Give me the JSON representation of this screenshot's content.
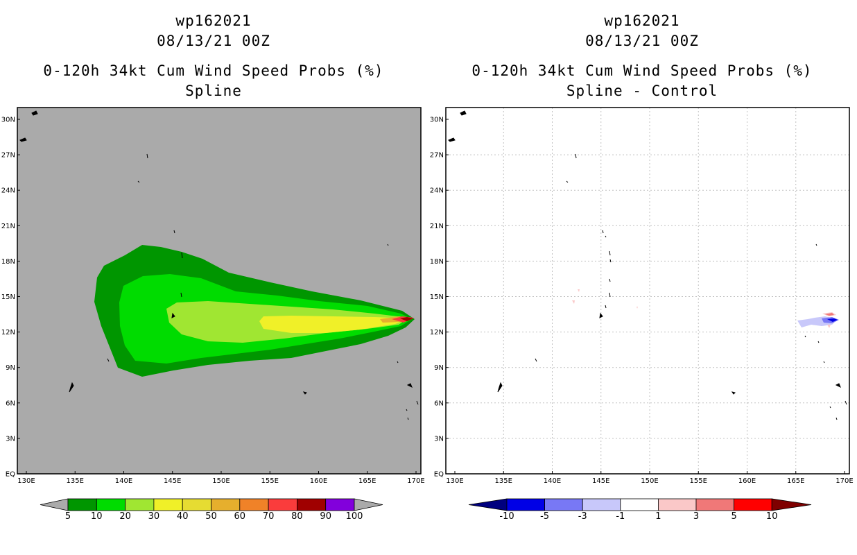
{
  "left_panel": {
    "title_line1": "wp162021",
    "title_line2": "08/13/21 00Z",
    "title_line3": "0-120h 34kt Cum Wind Speed Probs (%)",
    "title_line4": "Spline"
  },
  "right_panel": {
    "title_line1": "wp162021",
    "title_line2": "08/13/21 00Z",
    "title_line3": "0-120h 34kt Cum Wind Speed Probs (%)",
    "title_line4": "Spline - Control"
  },
  "axes": {
    "lat_labels": [
      "30N",
      "27N",
      "24N",
      "21N",
      "18N",
      "15N",
      "12N",
      "9N",
      "6N",
      "3N",
      "EQ"
    ],
    "lon_labels": [
      "130E",
      "135E",
      "140E",
      "145E",
      "150E",
      "155E",
      "160E",
      "165E",
      "170E"
    ]
  },
  "left_colorbar": {
    "labels": [
      "5",
      "10",
      "20",
      "30",
      "40",
      "50",
      "60",
      "70",
      "80",
      "90",
      "100"
    ],
    "colors": [
      "#009600",
      "#00dc00",
      "#a0e632",
      "#f0f028",
      "#e6dc32",
      "#e6af2d",
      "#f08228",
      "#fa3c3c",
      "#a00000",
      "#8200dc"
    ]
  },
  "right_colorbar": {
    "labels": [
      "-10",
      "-5",
      "-3",
      "-1",
      "1",
      "3",
      "5",
      "10"
    ],
    "colors": [
      "#0000e6",
      "#7878f5",
      "#c8c8fa",
      "#ffffff",
      "#fac8c8",
      "#f07878",
      "#ff0000"
    ]
  },
  "colors": {
    "land_gray": "#aaaaaa",
    "grid": "#c0c0c0"
  }
}
